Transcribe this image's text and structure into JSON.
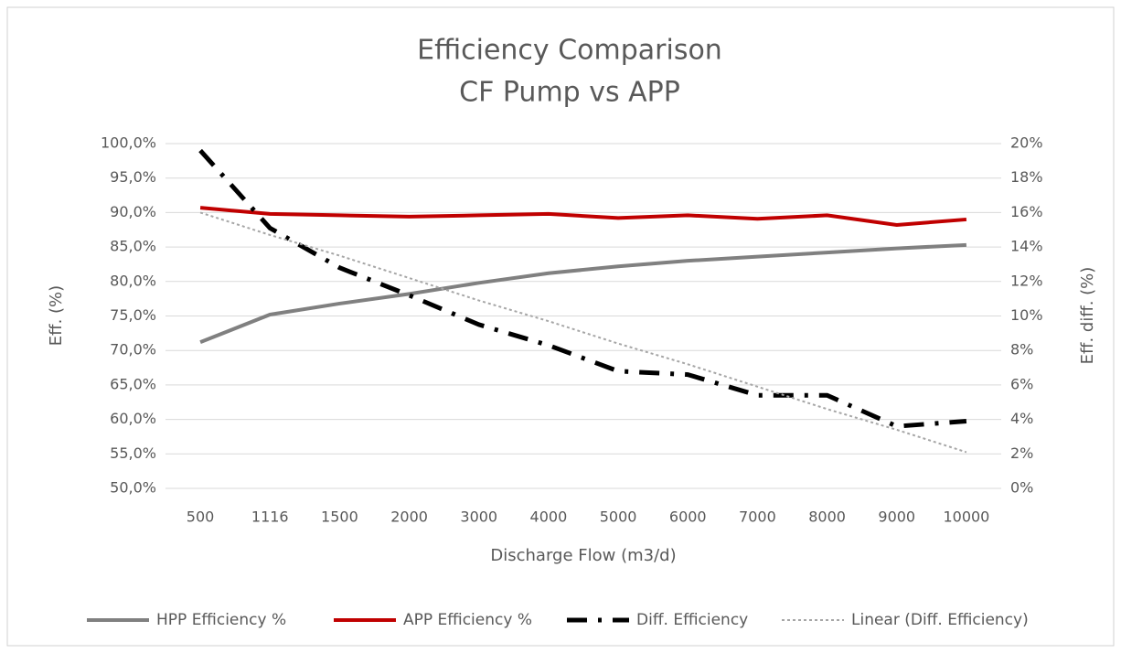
{
  "chart_data": {
    "type": "line",
    "title": "Efficiency Comparison",
    "subtitle": "CF Pump vs APP",
    "x_label": "Discharge Flow (m3/d)",
    "y_label": "Eff. (%)",
    "y2_label": "Eff. diff. (%)",
    "categories": [
      "500",
      "1116",
      "1500",
      "2000",
      "3000",
      "4000",
      "5000",
      "6000",
      "7000",
      "8000",
      "9000",
      "10000"
    ],
    "ylim": [
      50,
      100
    ],
    "yticks": [
      {
        "value": 50,
        "label": "50,0%"
      },
      {
        "value": 55,
        "label": "55,0%"
      },
      {
        "value": 60,
        "label": "60,0%"
      },
      {
        "value": 65,
        "label": "65,0%"
      },
      {
        "value": 70,
        "label": "70,0%"
      },
      {
        "value": 75,
        "label": "75,0%"
      },
      {
        "value": 80,
        "label": "80,0%"
      },
      {
        "value": 85,
        "label": "85,0%"
      },
      {
        "value": 90,
        "label": "90,0%"
      },
      {
        "value": 95,
        "label": "95,0%"
      },
      {
        "value": 100,
        "label": "100,0%"
      }
    ],
    "y2lim": [
      0,
      20
    ],
    "y2ticks": [
      {
        "value": 0,
        "label": "0%"
      },
      {
        "value": 2,
        "label": "2%"
      },
      {
        "value": 4,
        "label": "4%"
      },
      {
        "value": 6,
        "label": "6%"
      },
      {
        "value": 8,
        "label": "8%"
      },
      {
        "value": 10,
        "label": "10%"
      },
      {
        "value": 12,
        "label": "12%"
      },
      {
        "value": 14,
        "label": "14%"
      },
      {
        "value": 16,
        "label": "16%"
      },
      {
        "value": 18,
        "label": "18%"
      },
      {
        "value": 20,
        "label": "20%"
      }
    ],
    "grid": true,
    "legend": "bottom",
    "series": [
      {
        "name": "HPP Efficiency %",
        "color": "#808080",
        "line_style": "solid",
        "values": [
          71.2,
          75.2,
          76.8,
          78.2,
          79.8,
          81.2,
          82.2,
          83.0,
          83.6,
          84.2,
          84.8,
          85.3
        ]
      },
      {
        "name": "APP Efficiency %",
        "color": "#c00000",
        "line_style": "solid",
        "values": [
          90.7,
          89.8,
          89.6,
          89.4,
          89.6,
          89.8,
          89.2,
          89.6,
          89.1,
          89.6,
          88.2,
          89.0
        ]
      },
      {
        "name": "Diff. Efficiency",
        "color": "#000000",
        "line_style": "dash-dot",
        "axis": "y2",
        "values": [
          19.6,
          15.1,
          12.8,
          11.2,
          9.5,
          8.3,
          6.8,
          6.6,
          5.4,
          5.4,
          3.6,
          3.9
        ]
      },
      {
        "name": "Linear (Diff. Efficiency)",
        "color": "#a6a6a6",
        "line_style": "dotted",
        "axis": "y2",
        "values": [
          16.0,
          14.7,
          13.5,
          12.2,
          10.9,
          9.7,
          8.4,
          7.2,
          5.9,
          4.6,
          3.4,
          2.1
        ]
      }
    ]
  }
}
